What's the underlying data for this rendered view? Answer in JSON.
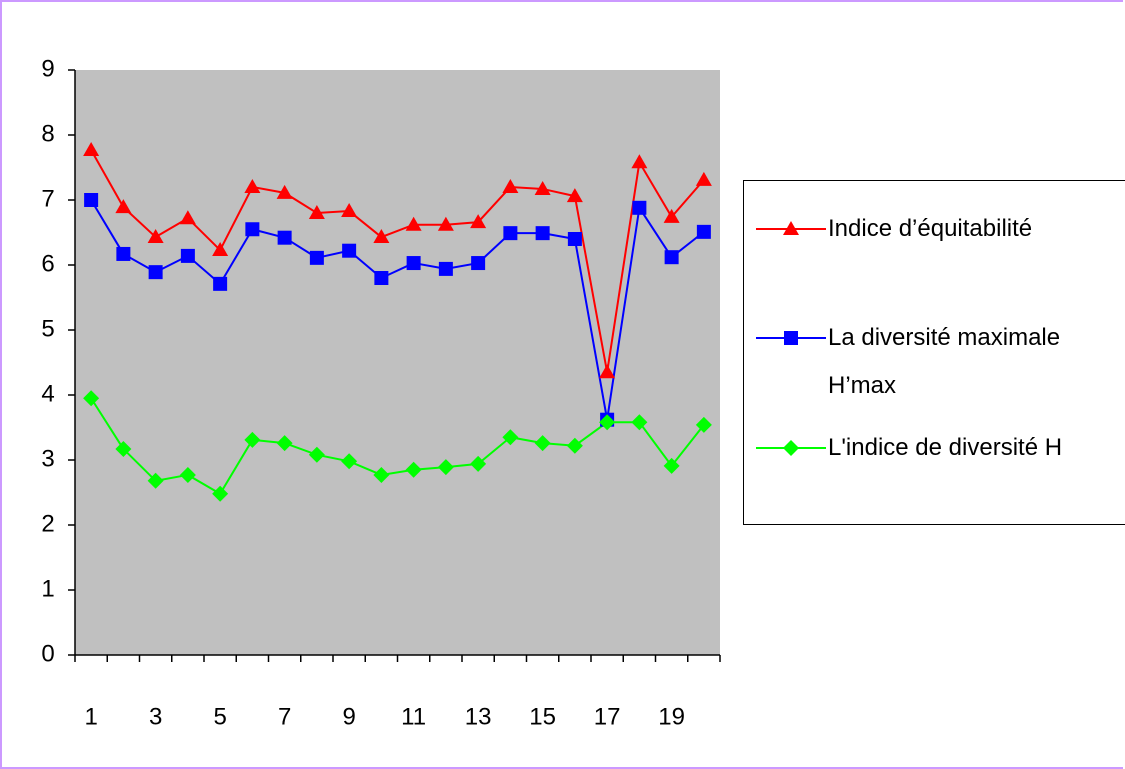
{
  "chart_data": {
    "type": "line",
    "categories": [
      "1",
      null,
      "3",
      null,
      "5",
      null,
      "7",
      null,
      "9",
      null,
      "11",
      null,
      "13",
      null,
      "15",
      null,
      "17",
      null,
      "19",
      null
    ],
    "series": [
      {
        "name": "Indice d’équitabilité",
        "color": "#ff0000",
        "marker": "triangle",
        "values": [
          7.77,
          6.89,
          6.43,
          6.72,
          6.23,
          7.2,
          7.11,
          6.8,
          6.83,
          6.43,
          6.62,
          6.62,
          6.66,
          7.2,
          7.17,
          7.06,
          4.35,
          7.58,
          6.74,
          7.31
        ]
      },
      {
        "name": "La diversité maximale H’max",
        "color": "#0000ff",
        "marker": "square",
        "values": [
          7.0,
          6.17,
          5.89,
          6.14,
          5.71,
          6.55,
          6.42,
          6.11,
          6.22,
          5.8,
          6.03,
          5.94,
          6.03,
          6.49,
          6.49,
          6.4,
          3.62,
          6.88,
          6.12,
          6.51
        ]
      },
      {
        "name": "L'indice de diversité H",
        "color": "#00ff00",
        "marker": "diamond",
        "values": [
          3.95,
          3.17,
          2.68,
          2.77,
          2.48,
          3.31,
          3.26,
          3.08,
          2.98,
          2.77,
          2.85,
          2.89,
          2.94,
          3.35,
          3.26,
          3.22,
          3.58,
          3.58,
          2.91,
          3.54
        ]
      }
    ],
    "ylim": [
      0,
      9
    ],
    "yticks": [
      0,
      1,
      2,
      3,
      4,
      5,
      6,
      7,
      8,
      9
    ],
    "plot_background": "#c0c0c0"
  }
}
